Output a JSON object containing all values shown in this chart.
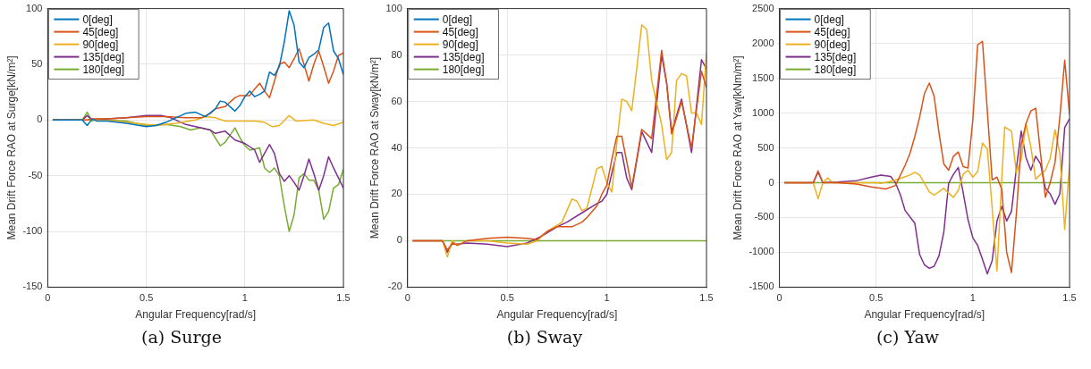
{
  "chart_data": [
    {
      "type": "line",
      "xlabel": "Angular Frequency[rad/s]",
      "ylabel": "Mean Drift Force RAO at Surge[kN/m²]",
      "xlim": [
        0,
        1.5
      ],
      "xticks": [
        0,
        0.5,
        1,
        1.5
      ],
      "ylim": [
        -150,
        100
      ],
      "yticks": [
        -150,
        -100,
        -50,
        0,
        50,
        100
      ],
      "grid": true,
      "legend": "top left",
      "annotations": [
        "(a) Surge"
      ],
      "series": [
        {
          "name": "0[deg]",
          "color": "#0072bd",
          "x": [
            0.025,
            0.175,
            0.2,
            0.225,
            0.25,
            0.3,
            0.4,
            0.5,
            0.55,
            0.6,
            0.65,
            0.7,
            0.75,
            0.8,
            0.85,
            0.875,
            0.9,
            0.95,
            0.975,
            1.0,
            1.025,
            1.05,
            1.075,
            1.1,
            1.125,
            1.15,
            1.175,
            1.2,
            1.225,
            1.25,
            1.275,
            1.3,
            1.325,
            1.35,
            1.375,
            1.4,
            1.425,
            1.45,
            1.475,
            1.5
          ],
          "values": [
            0,
            0,
            -5,
            1,
            -1,
            -1,
            -3,
            -6,
            -5,
            -2,
            2,
            6,
            7,
            3,
            10,
            17,
            16,
            8,
            13,
            21,
            26,
            21,
            23,
            26,
            43,
            40,
            48,
            70,
            98,
            85,
            52,
            47,
            56,
            59,
            63,
            83,
            87,
            62,
            55,
            41
          ]
        },
        {
          "name": "45[deg]",
          "color": "#d95319",
          "x": [
            0.025,
            0.2,
            0.225,
            0.3,
            0.4,
            0.5,
            0.6,
            0.7,
            0.78,
            0.825,
            0.85,
            0.9,
            0.95,
            0.975,
            1.0,
            1.025,
            1.05,
            1.075,
            1.1,
            1.125,
            1.15,
            1.175,
            1.2,
            1.225,
            1.25,
            1.275,
            1.3,
            1.325,
            1.35,
            1.375,
            1.4,
            1.425,
            1.45,
            1.475,
            1.5
          ],
          "values": [
            0,
            0,
            1,
            1,
            2,
            3,
            3,
            2,
            2,
            6,
            10,
            12,
            20,
            22,
            22,
            22,
            28,
            33,
            26,
            20,
            35,
            50,
            52,
            47,
            55,
            64,
            50,
            35,
            50,
            62,
            48,
            33,
            44,
            58,
            60
          ]
        },
        {
          "name": "90[deg]",
          "color": "#edb120",
          "x": [
            0.025,
            0.25,
            0.35,
            0.45,
            0.55,
            0.65,
            0.75,
            0.8,
            0.85,
            0.9,
            1.0,
            1.05,
            1.1,
            1.14,
            1.175,
            1.225,
            1.26,
            1.35,
            1.4,
            1.45,
            1.5
          ],
          "values": [
            0,
            0,
            -1,
            -3,
            -5,
            -3,
            0,
            3,
            2,
            -1,
            -1,
            -1,
            -2,
            -6,
            -5,
            4,
            -1,
            0,
            -3,
            -5,
            -2
          ]
        },
        {
          "name": "135[deg]",
          "color": "#7e2f8e",
          "x": [
            0.025,
            0.175,
            0.2,
            0.225,
            0.3,
            0.4,
            0.5,
            0.575,
            0.625,
            0.7,
            0.775,
            0.825,
            0.85,
            0.9,
            0.95,
            1.0,
            1.025,
            1.05,
            1.075,
            1.1,
            1.125,
            1.15,
            1.175,
            1.2,
            1.225,
            1.25,
            1.275,
            1.3,
            1.325,
            1.35,
            1.375,
            1.4,
            1.425,
            1.45,
            1.475,
            1.5
          ],
          "values": [
            0,
            0,
            4,
            0,
            1,
            2,
            4,
            4,
            2,
            -4,
            -7,
            -9,
            -12,
            -10,
            -18,
            -21,
            -24,
            -27,
            -38,
            -30,
            -22,
            -30,
            -48,
            -55,
            -50,
            -56,
            -63,
            -50,
            -35,
            -48,
            -63,
            -50,
            -33,
            -43,
            -52,
            -61
          ]
        },
        {
          "name": "180[deg]",
          "color": "#77ac30",
          "x": [
            0.025,
            0.175,
            0.2,
            0.225,
            0.25,
            0.3,
            0.4,
            0.5,
            0.6,
            0.675,
            0.725,
            0.775,
            0.825,
            0.875,
            0.9,
            0.95,
            0.975,
            1.0,
            1.025,
            1.075,
            1.1,
            1.125,
            1.15,
            1.175,
            1.2,
            1.225,
            1.25,
            1.275,
            1.3,
            1.325,
            1.35,
            1.375,
            1.4,
            1.425,
            1.45,
            1.475,
            1.5
          ],
          "values": [
            0,
            0,
            7,
            -1,
            1,
            0,
            -1,
            -5,
            -4,
            -6,
            -9,
            -7,
            -9,
            -23,
            -20,
            -7,
            -16,
            -23,
            -27,
            -25,
            -43,
            -47,
            -43,
            -50,
            -77,
            -100,
            -85,
            -52,
            -48,
            -54,
            -54,
            -63,
            -89,
            -82,
            -61,
            -58,
            -44
          ]
        }
      ]
    },
    {
      "type": "line",
      "xlabel": "Angular Frequency[rad/s]",
      "ylabel": "Mean Drift Force RAO at Sway[kN/m²]",
      "xlim": [
        0,
        1.5
      ],
      "xticks": [
        0,
        0.5,
        1,
        1.5
      ],
      "ylim": [
        -20,
        100
      ],
      "yticks": [
        -20,
        0,
        20,
        40,
        60,
        80,
        100
      ],
      "grid": true,
      "legend": "top left",
      "annotations": [
        "(b) Sway"
      ],
      "series": [
        {
          "name": "0[deg]",
          "color": "#0072bd"
        },
        {
          "name": "45[deg]",
          "color": "#d95319",
          "x": [
            0.025,
            0.175,
            0.2,
            0.225,
            0.25,
            0.3,
            0.4,
            0.5,
            0.6,
            0.65,
            0.7,
            0.75,
            0.8,
            0.825,
            0.875,
            0.9,
            0.95,
            0.975,
            1.0,
            1.025,
            1.05,
            1.075,
            1.125,
            1.15,
            1.175,
            1.225,
            1.275,
            1.3,
            1.325,
            1.375,
            1.425,
            1.475,
            1.5
          ],
          "values": [
            0,
            0,
            -4,
            -1,
            -2,
            0,
            1,
            1.5,
            1,
            0.5,
            4,
            6,
            6,
            6,
            8,
            10,
            15,
            20,
            24,
            35,
            45,
            45,
            23,
            35,
            48,
            44,
            82,
            68,
            46,
            60,
            40,
            73,
            66
          ]
        },
        {
          "name": "90[deg]",
          "color": "#edb120",
          "x": [
            0.025,
            0.175,
            0.2,
            0.225,
            0.25,
            0.3,
            0.4,
            0.5,
            0.6,
            0.65,
            0.7,
            0.775,
            0.825,
            0.85,
            0.875,
            0.9,
            0.95,
            0.975,
            1.0,
            1.025,
            1.05,
            1.075,
            1.1,
            1.125,
            1.15,
            1.175,
            1.2,
            1.225,
            1.275,
            1.3,
            1.325,
            1.35,
            1.375,
            1.4,
            1.425,
            1.45,
            1.475,
            1.5
          ],
          "values": [
            0,
            0,
            -7,
            0,
            -2,
            0,
            0,
            -1,
            -1.5,
            0,
            4,
            8,
            18,
            17,
            13,
            14,
            31,
            32,
            25,
            21,
            42,
            61,
            60,
            56,
            74,
            93,
            91,
            69,
            50,
            35,
            38,
            69,
            72,
            71,
            55,
            55,
            50,
            81
          ]
        },
        {
          "name": "135[deg]",
          "color": "#7e2f8e",
          "x": [
            0.025,
            0.175,
            0.2,
            0.225,
            0.25,
            0.3,
            0.4,
            0.5,
            0.6,
            0.675,
            0.75,
            0.8,
            0.875,
            0.95,
            0.975,
            1.0,
            1.05,
            1.075,
            1.1,
            1.125,
            1.175,
            1.225,
            1.275,
            1.3,
            1.325,
            1.375,
            1.425,
            1.475,
            1.5
          ],
          "values": [
            0,
            0,
            -5,
            -1,
            -1.5,
            -1,
            -1.5,
            -2.5,
            -1,
            2,
            6,
            8,
            12,
            16,
            17,
            20,
            38,
            38,
            27,
            22,
            47,
            38,
            80,
            68,
            47,
            61,
            38,
            78,
            74
          ]
        },
        {
          "name": "180[deg]",
          "color": "#77ac30",
          "x": [
            0.025,
            1.5
          ],
          "values": [
            0,
            0
          ]
        }
      ]
    },
    {
      "type": "line",
      "xlabel": "Angular Frequency[rad/s]",
      "ylabel": "Mean Drift Force RAO at Yaw[kNm/m²]",
      "xlim": [
        0,
        1.5
      ],
      "xticks": [
        0,
        0.5,
        1,
        1.5
      ],
      "ylim": [
        -1500,
        2500
      ],
      "yticks": [
        -1500,
        -1000,
        -500,
        0,
        500,
        1000,
        1500,
        2000,
        2500
      ],
      "grid": true,
      "legend": "top left",
      "annotations": [
        "(c) Yaw"
      ],
      "series": [
        {
          "name": "0[deg]",
          "color": "#0072bd"
        },
        {
          "name": "45[deg]",
          "color": "#d95319",
          "x": [
            0.025,
            0.175,
            0.2,
            0.225,
            0.3,
            0.4,
            0.475,
            0.55,
            0.6,
            0.65,
            0.675,
            0.7,
            0.725,
            0.75,
            0.775,
            0.8,
            0.825,
            0.85,
            0.875,
            0.9,
            0.925,
            0.95,
            0.975,
            1.0,
            1.025,
            1.05,
            1.075,
            1.1,
            1.125,
            1.15,
            1.175,
            1.2,
            1.225,
            1.25,
            1.275,
            1.3,
            1.325,
            1.35,
            1.375,
            1.4,
            1.425,
            1.45,
            1.475,
            1.5
          ],
          "values": [
            0,
            0,
            170,
            0,
            0,
            -20,
            -60,
            -90,
            -40,
            250,
            420,
            660,
            940,
            1280,
            1430,
            1240,
            720,
            270,
            180,
            380,
            440,
            230,
            210,
            900,
            1980,
            2030,
            1030,
            40,
            80,
            -100,
            -1000,
            -1290,
            -450,
            550,
            850,
            1030,
            1070,
            420,
            -210,
            0,
            290,
            940,
            1760,
            980
          ]
        },
        {
          "name": "90[deg]",
          "color": "#edb120",
          "x": [
            0.025,
            0.175,
            0.2,
            0.225,
            0.25,
            0.275,
            0.5,
            0.525,
            0.575,
            0.625,
            0.675,
            0.7,
            0.725,
            0.775,
            0.8,
            0.825,
            0.85,
            0.875,
            0.9,
            0.925,
            0.95,
            0.975,
            1.0,
            1.025,
            1.05,
            1.075,
            1.1,
            1.125,
            1.15,
            1.165,
            1.2,
            1.225,
            1.25,
            1.275,
            1.3,
            1.325,
            1.35,
            1.375,
            1.4,
            1.425,
            1.45,
            1.475,
            1.5
          ],
          "values": [
            0,
            0,
            -230,
            0,
            70,
            0,
            0,
            -10,
            20,
            60,
            110,
            150,
            110,
            -130,
            -180,
            -130,
            -80,
            -150,
            -210,
            -110,
            120,
            180,
            80,
            160,
            570,
            480,
            -360,
            -1270,
            70,
            800,
            740,
            140,
            330,
            850,
            510,
            50,
            120,
            180,
            350,
            760,
            420,
            -670,
            260
          ]
        },
        {
          "name": "135[deg]",
          "color": "#7e2f8e",
          "x": [
            0.025,
            0.175,
            0.2,
            0.225,
            0.3,
            0.4,
            0.475,
            0.525,
            0.575,
            0.6,
            0.625,
            0.65,
            0.7,
            0.725,
            0.75,
            0.775,
            0.8,
            0.825,
            0.85,
            0.875,
            0.9,
            0.925,
            0.95,
            0.975,
            1.0,
            1.025,
            1.05,
            1.075,
            1.1,
            1.125,
            1.15,
            1.175,
            1.2,
            1.225,
            1.25,
            1.275,
            1.3,
            1.325,
            1.35,
            1.375,
            1.4,
            1.425,
            1.45,
            1.475,
            1.5
          ],
          "values": [
            0,
            0,
            150,
            0,
            10,
            30,
            80,
            110,
            90,
            0,
            -170,
            -400,
            -580,
            -1030,
            -1180,
            -1230,
            -1200,
            -1050,
            -710,
            -10,
            120,
            220,
            -140,
            -530,
            -790,
            -900,
            -1100,
            -1310,
            -1120,
            -550,
            -340,
            -550,
            -410,
            200,
            740,
            360,
            180,
            380,
            270,
            -80,
            -160,
            -310,
            -160,
            790,
            920
          ]
        },
        {
          "name": "180[deg]",
          "color": "#77ac30",
          "x": [
            0.025,
            1.5
          ],
          "values": [
            0,
            0
          ]
        }
      ]
    }
  ]
}
